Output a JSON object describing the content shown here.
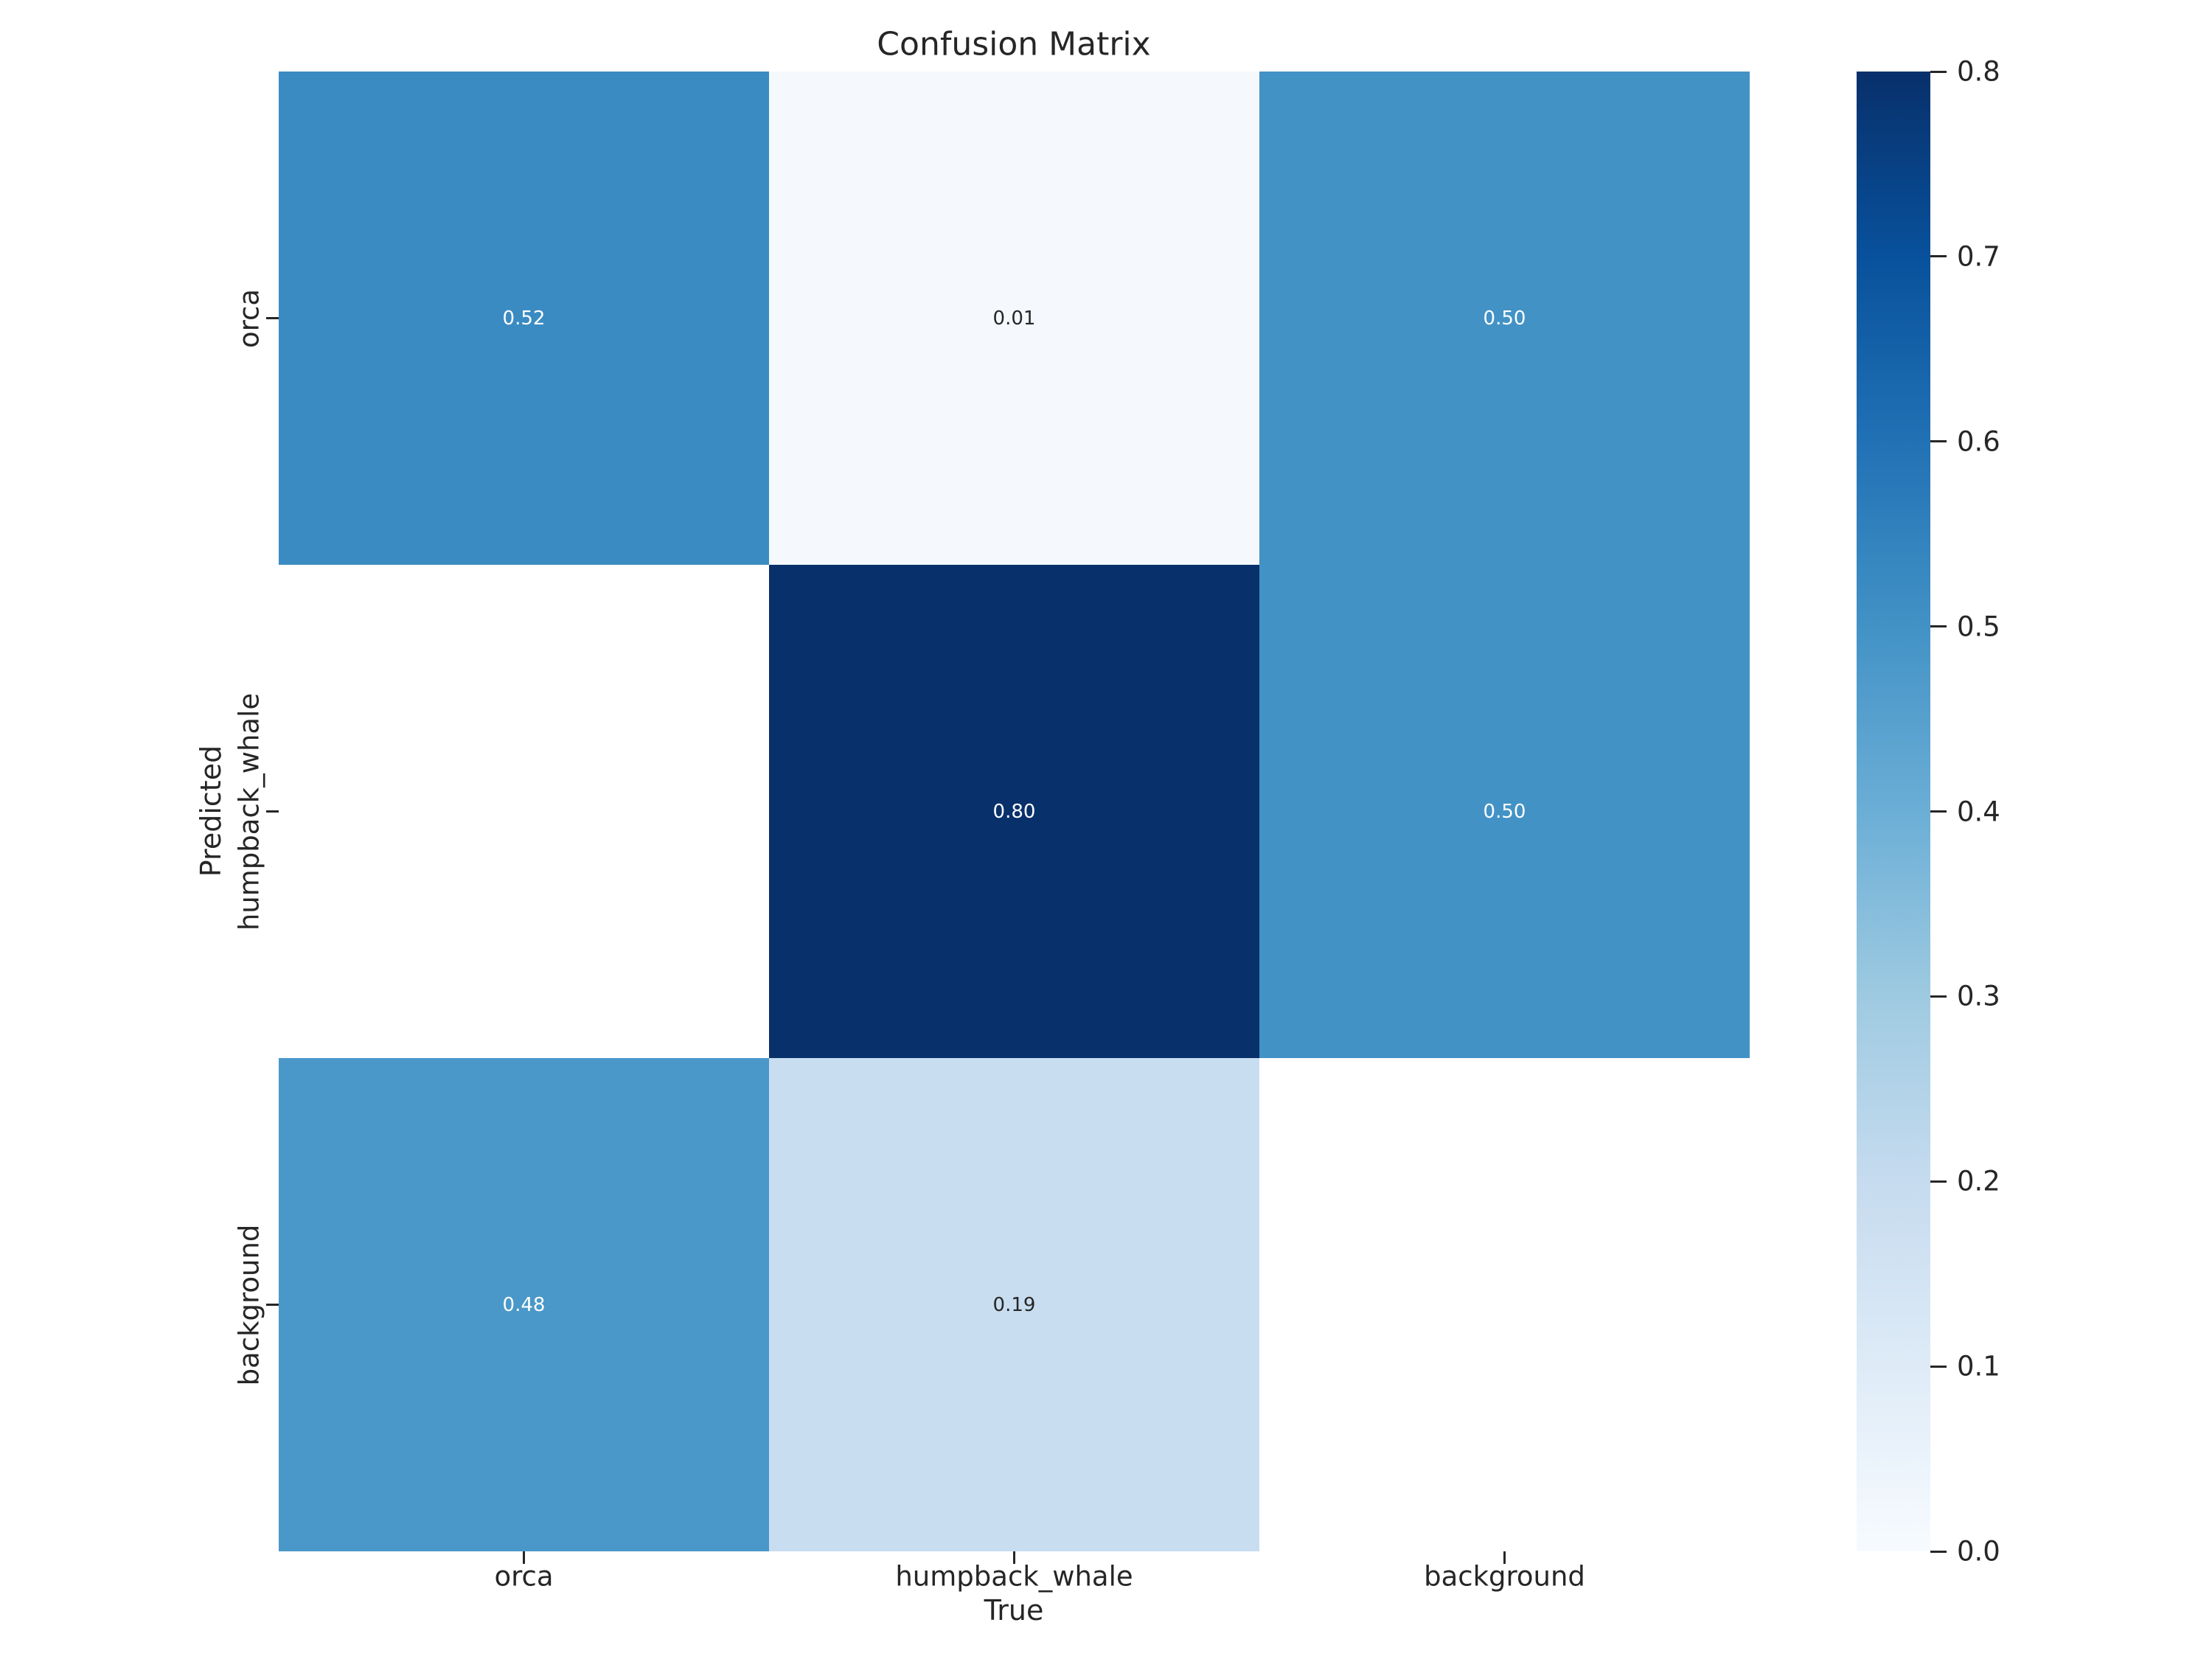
{
  "title": "Confusion Matrix",
  "colors": {
    "background": "#ffffff",
    "text": "#262626",
    "tick_mark": "#262626",
    "annot_on_dark": "#ffffff",
    "annot_on_light": "#262626",
    "nan_cell": "#ffffff"
  },
  "chart_data": {
    "type": "heatmap",
    "title": "Confusion Matrix",
    "xlabel": "True",
    "ylabel": "Predicted",
    "x_categories": [
      "orca",
      "humpback_whale",
      "background"
    ],
    "y_categories": [
      "orca",
      "humpback_whale",
      "background"
    ],
    "values": [
      [
        0.52,
        0.01,
        0.5
      ],
      [
        null,
        0.8,
        0.5
      ],
      [
        0.48,
        0.19,
        null
      ]
    ],
    "value_decimals": 2,
    "vmin": 0.0,
    "vmax": 0.8,
    "colormap": "Blues",
    "colormap_stops": [
      "#f7fbff",
      "#deebf7",
      "#c6dbef",
      "#9ecae1",
      "#6baed6",
      "#4292c6",
      "#2171b5",
      "#08519c",
      "#08306b"
    ],
    "colorbar_ticks": [
      0.0,
      0.1,
      0.2,
      0.3,
      0.4,
      0.5,
      0.6,
      0.7,
      0.8
    ],
    "colorbar_tick_decimals": 1,
    "legend_position": "right",
    "grid": false
  }
}
